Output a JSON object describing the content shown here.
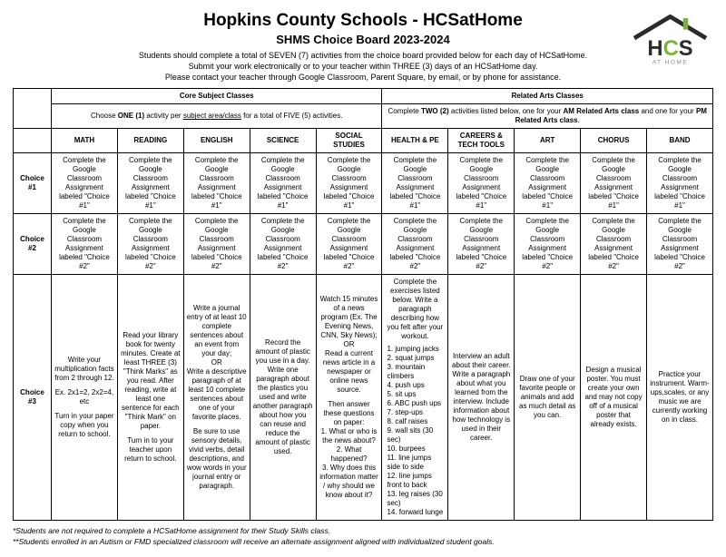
{
  "header": {
    "title": "Hopkins County Schools - HCSatHome",
    "subtitle": "SHMS Choice Board 2023-2024",
    "line1": "Students should complete a total of SEVEN (7) activities from the choice board provided below for each day of HCSatHome.",
    "line2": "Submit your work electronically or to your teacher within THREE (3) days of an HCSatHome day.",
    "line3": "Please contact your teacher through Google Classroom, Parent Square, by email, or by phone for assistance."
  },
  "logo": {
    "text_main": "HCS",
    "text_sub": "AT HOME",
    "roof_color": "#2b2b2b",
    "accent_color": "#7db13f",
    "text_color": "#2b2b2b"
  },
  "sections": {
    "core": {
      "title": "Core Subject Classes",
      "sub_pre": "Choose ",
      "sub_bold1": "ONE (1)",
      "sub_mid": " activity per ",
      "sub_under": "subject area/class",
      "sub_post": " for a total of FIVE (5) activities."
    },
    "arts": {
      "title": "Related Arts Classes",
      "sub_pre": "Complete ",
      "sub_bold1": "TWO (2)",
      "sub_mid1": " activities listed below, one for your ",
      "sub_bold2": "AM Related Arts class",
      "sub_mid2": " and one for your ",
      "sub_bold3": "PM Related Arts class",
      "sub_post": "."
    }
  },
  "columns": {
    "math": "MATH",
    "reading": "READING",
    "english": "ENGLISH",
    "science": "SCIENCE",
    "social": "SOCIAL STUDIES",
    "health": "HEALTH & PE",
    "careers": "CAREERS & TECH TOOLS",
    "art": "ART",
    "chorus": "CHORUS",
    "band": "BAND"
  },
  "rows": {
    "c1": "Choice #1",
    "c2": "Choice #2",
    "c3": "Choice #3"
  },
  "gc": {
    "c1": "Complete the Google Classroom Assignment labeled \"Choice #1\"",
    "c2": "Complete the Google Classroom Assignment labeled \"Choice #2\""
  },
  "choice3": {
    "math": "Write your multiplication facts from 2 through 12.\n\nEx. 2x1=2, 2x2=4, etc\n\nTurn in your paper copy when you return to school.",
    "reading": "Read your library book for twenty minutes. Create at least THREE (3) \"Think Marks\" as you read. After reading, write at least one sentence for each \"Think Mark\" on paper.\n\nTurn in to your teacher upon return to school.",
    "english": "Write a journal entry of at least 10 complete sentences about an event from your day;\nOR\nWrite a descriptive paragraph of at least 10 complete sentences about one of your favorite places.\n\nBe sure to use sensory details, vivid verbs, detail descriptions, and wow words in your journal entry or paragraph.",
    "science": "Record the amount of plastic you use in a day.  Write one paragraph about the plastics you used and write another paragraph about how you can reuse and reduce the amount of plastic used.",
    "social": "Watch 15 minutes of a news program (Ex. The Evening News, CNN, Sky News);\nOR\nRead a current news article in a newspaper or online news source.\n\nThen answer these questions on paper:\n1. What or who is the news about?\n2. What happened?\n3. Why does this information matter / why should we know about it?",
    "health_intro": "Complete the exercises listed below.  Write a paragraph describing how you felt after your workout.",
    "health_list": [
      "jumping jacks",
      "squat jumps",
      "mountain climbers",
      "push ups",
      "sit ups",
      "ABC push ups",
      "step-ups",
      "calf raises",
      "wall sits (30 sec)",
      "burpees",
      "line jumps side to side",
      "line jumps front to back",
      "leg raises (30 sec)",
      "forward lunge"
    ],
    "careers": "Interview an adult about their career.  Write a paragraph about what you learned from the interview.  Include information about how technology is used in their career.",
    "art": "Draw one of your favorite people or animals and add as much detail as you can.",
    "chorus": "Design a musical poster.  You must create your own and may not copy off of a musical poster that already exists.",
    "band": "Practice your instrument.  Warm-ups,scales, or any music we are currently working on in class."
  },
  "footnotes": {
    "f1": "*Students are not required to complete a HCSatHome assignment for their Study Skills class.",
    "f2": "**Students enrolled in an Autism or FMD specialized classroom will receive an alternate assignment aligned with individualized student goals."
  }
}
